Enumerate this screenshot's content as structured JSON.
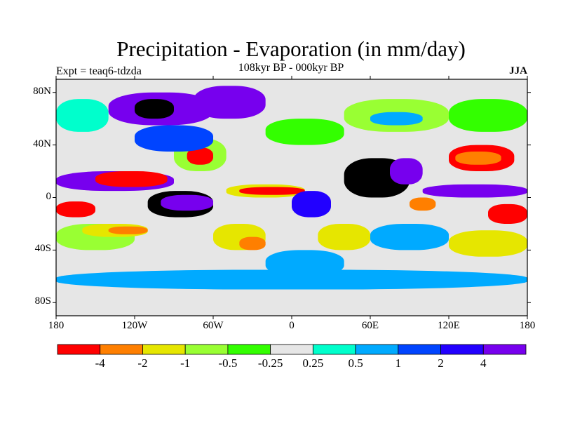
{
  "title": "Precipitation - Evaporation (in mm/day)",
  "subtitle": "108kyr BP - 000kyr BP",
  "experiment_label": "Expt = teaq6-tdzda",
  "season_label": "JJA",
  "map": {
    "projection": "cylindrical-equidistant",
    "lon_range": [
      -180,
      180
    ],
    "lat_range": [
      -90,
      90
    ],
    "lat_ticks": [
      {
        "value": 80,
        "label": "80N"
      },
      {
        "value": 40,
        "label": "40N"
      },
      {
        "value": 0,
        "label": "0"
      },
      {
        "value": -40,
        "label": "40S"
      },
      {
        "value": -80,
        "label": "80S"
      }
    ],
    "lon_ticks": [
      {
        "value": -180,
        "label": "180"
      },
      {
        "value": -120,
        "label": "120W"
      },
      {
        "value": -60,
        "label": "60W"
      },
      {
        "value": 0,
        "label": "0"
      },
      {
        "value": 60,
        "label": "60E"
      },
      {
        "value": 120,
        "label": "120E"
      },
      {
        "value": 180,
        "label": "180"
      }
    ],
    "background_color": "#e6e6e6",
    "fields": [
      {
        "lon": [
          -180,
          -90
        ],
        "lat": [
          5,
          20
        ],
        "level": 10
      },
      {
        "lon": [
          -150,
          -95
        ],
        "lat": [
          8,
          20
        ],
        "level": 0
      },
      {
        "lon": [
          -180,
          -150
        ],
        "lat": [
          -15,
          -3
        ],
        "level": 0
      },
      {
        "lon": [
          -180,
          -120
        ],
        "lat": [
          -40,
          -20
        ],
        "level": 3
      },
      {
        "lon": [
          -160,
          -110
        ],
        "lat": [
          -30,
          -20
        ],
        "level": 2
      },
      {
        "lon": [
          -140,
          -110
        ],
        "lat": [
          -28,
          -22
        ],
        "level": 1
      },
      {
        "lon": [
          -110,
          -60
        ],
        "lat": [
          -15,
          5
        ],
        "level": 11
      },
      {
        "lon": [
          -100,
          -60
        ],
        "lat": [
          -10,
          2
        ],
        "level": 10
      },
      {
        "lon": [
          -90,
          -50
        ],
        "lat": [
          20,
          45
        ],
        "level": 3
      },
      {
        "lon": [
          -80,
          -60
        ],
        "lat": [
          25,
          38
        ],
        "level": 0
      },
      {
        "lon": [
          -120,
          -60
        ],
        "lat": [
          35,
          55
        ],
        "level": 8
      },
      {
        "lon": [
          -140,
          -60
        ],
        "lat": [
          55,
          80
        ],
        "level": 10
      },
      {
        "lon": [
          -75,
          -20
        ],
        "lat": [
          60,
          85
        ],
        "level": 10
      },
      {
        "lon": [
          -120,
          -90
        ],
        "lat": [
          60,
          75
        ],
        "level": 11
      },
      {
        "lon": [
          -50,
          10
        ],
        "lat": [
          0,
          10
        ],
        "level": 2
      },
      {
        "lon": [
          -40,
          10
        ],
        "lat": [
          2,
          8
        ],
        "level": 0
      },
      {
        "lon": [
          -60,
          -20
        ],
        "lat": [
          -40,
          -20
        ],
        "level": 2
      },
      {
        "lon": [
          -40,
          -20
        ],
        "lat": [
          -40,
          -30
        ],
        "level": 1
      },
      {
        "lon": [
          20,
          60
        ],
        "lat": [
          -40,
          -20
        ],
        "level": 2
      },
      {
        "lon": [
          0,
          30
        ],
        "lat": [
          -15,
          5
        ],
        "level": 9
      },
      {
        "lon": [
          -20,
          40
        ],
        "lat": [
          -60,
          -40
        ],
        "level": 7
      },
      {
        "lon": [
          40,
          90
        ],
        "lat": [
          0,
          30
        ],
        "level": 11
      },
      {
        "lon": [
          75,
          100
        ],
        "lat": [
          10,
          30
        ],
        "level": 10
      },
      {
        "lon": [
          100,
          180
        ],
        "lat": [
          0,
          10
        ],
        "level": 10
      },
      {
        "lon": [
          90,
          110
        ],
        "lat": [
          -10,
          0
        ],
        "level": 1
      },
      {
        "lon": [
          120,
          170
        ],
        "lat": [
          20,
          40
        ],
        "level": 0
      },
      {
        "lon": [
          125,
          160
        ],
        "lat": [
          25,
          35
        ],
        "level": 1
      },
      {
        "lon": [
          150,
          180
        ],
        "lat": [
          -20,
          -5
        ],
        "level": 0
      },
      {
        "lon": [
          60,
          120
        ],
        "lat": [
          -40,
          -20
        ],
        "level": 7
      },
      {
        "lon": [
          120,
          180
        ],
        "lat": [
          -45,
          -25
        ],
        "level": 2
      },
      {
        "lon": [
          -180,
          180
        ],
        "lat": [
          -70,
          -55
        ],
        "level": 7
      },
      {
        "lon": [
          -180,
          180
        ],
        "lat": [
          -90,
          -70
        ],
        "level": 5
      },
      {
        "lon": [
          40,
          120
        ],
        "lat": [
          50,
          75
        ],
        "level": 3
      },
      {
        "lon": [
          60,
          100
        ],
        "lat": [
          55,
          65
        ],
        "level": 7
      },
      {
        "lon": [
          120,
          180
        ],
        "lat": [
          50,
          75
        ],
        "level": 4
      },
      {
        "lon": [
          -180,
          -140
        ],
        "lat": [
          50,
          75
        ],
        "level": 6
      },
      {
        "lon": [
          -20,
          40
        ],
        "lat": [
          40,
          60
        ],
        "level": 4
      }
    ]
  },
  "colorbar": {
    "colors": [
      "#ff0000",
      "#ff7f00",
      "#e6e600",
      "#99ff33",
      "#33ff00",
      "#e6e6e6",
      "#00ffcc",
      "#00aaff",
      "#0044ff",
      "#2200ff",
      "#7700ee"
    ],
    "labels": [
      "-4",
      "-2",
      "-1",
      "-0.5",
      "-0.25",
      "0.25",
      "0.5",
      "1",
      "2",
      "4"
    ]
  }
}
